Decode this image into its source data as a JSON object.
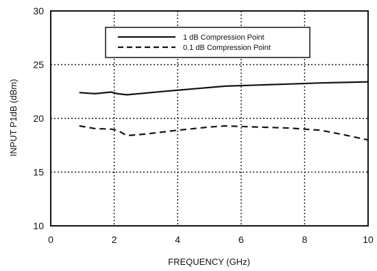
{
  "chart_data": {
    "type": "line",
    "title": "",
    "xlabel": "FREQUENCY (GHz)",
    "ylabel": "INPUT P1dB  (dBm)",
    "xlim": [
      0,
      10
    ],
    "ylim": [
      10,
      30
    ],
    "xticks": [
      0,
      2,
      4,
      6,
      8,
      10
    ],
    "yticks": [
      10,
      15,
      20,
      25,
      30
    ],
    "grid": true,
    "grid_style": "dotted",
    "legend_position": "top",
    "series": [
      {
        "name": "1 dB Compression Point",
        "line_style": "solid",
        "x": [
          0.9,
          1.4,
          1.9,
          2.1,
          2.4,
          3.5,
          4.5,
          5.5,
          6.5,
          7.5,
          8.5,
          10.0
        ],
        "y": [
          22.4,
          22.3,
          22.45,
          22.3,
          22.2,
          22.5,
          22.75,
          23.0,
          23.1,
          23.2,
          23.3,
          23.4
        ]
      },
      {
        "name": "0.1 dB Compression Point",
        "line_style": "dashed",
        "x": [
          0.9,
          1.4,
          1.9,
          2.1,
          2.4,
          3.0,
          4.0,
          5.0,
          5.5,
          6.5,
          7.5,
          8.5,
          9.2,
          10.0
        ],
        "y": [
          19.3,
          19.05,
          19.0,
          18.9,
          18.4,
          18.55,
          18.9,
          19.2,
          19.3,
          19.2,
          19.1,
          18.9,
          18.5,
          18.0
        ]
      }
    ]
  }
}
